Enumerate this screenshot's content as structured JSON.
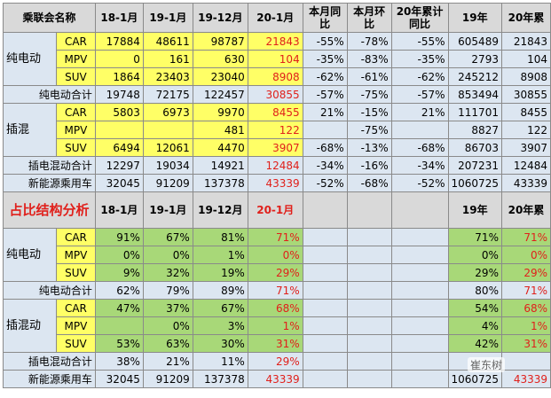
{
  "table": {
    "sections": [
      {
        "header": [
          "乘联会名称",
          "18-1月",
          "19-1月",
          "19-12月",
          "20-1月",
          "本月同比",
          "本月环比",
          "20年累计同比",
          "19年",
          "20年累"
        ],
        "rows": [
          {
            "group": "纯电动",
            "items": [
              {
                "label": "CAR",
                "cells": [
                  "17884",
                  "48611",
                  "98787",
                  "21843",
                  "-55%",
                  "-78%",
                  "-55%",
                  "605489",
                  "21843"
                ]
              },
              {
                "label": "MPV",
                "cells": [
                  "0",
                  "161",
                  "630",
                  "104",
                  "-35%",
                  "-83%",
                  "-35%",
                  "2793",
                  "104"
                ]
              },
              {
                "label": "SUV",
                "cells": [
                  "1864",
                  "23403",
                  "23040",
                  "8908",
                  "-62%",
                  "-61%",
                  "-62%",
                  "245212",
                  "8908"
                ]
              }
            ]
          },
          {
            "label": "纯电动合计",
            "cells": [
              "19748",
              "72175",
              "122457",
              "30855",
              "-57%",
              "-75%",
              "-57%",
              "853494",
              "30855"
            ]
          },
          {
            "group": "插混",
            "items": [
              {
                "label": "CAR",
                "cells": [
                  "5803",
                  "6973",
                  "9970",
                  "8455",
                  "21%",
                  "-15%",
                  "21%",
                  "111701",
                  "8455"
                ]
              },
              {
                "label": "MPV",
                "cells": [
                  null,
                  null,
                  "481",
                  "122",
                  null,
                  "-75%",
                  null,
                  "8827",
                  "122"
                ]
              },
              {
                "label": "SUV",
                "cells": [
                  "6494",
                  "12061",
                  "4470",
                  "3907",
                  "-68%",
                  "-13%",
                  "-68%",
                  "86703",
                  "3907"
                ]
              }
            ]
          },
          {
            "label": "插电混动合计",
            "cells": [
              "12297",
              "19034",
              "14921",
              "12484",
              "-34%",
              "-16%",
              "-34%",
              "207231",
              "12484"
            ]
          },
          {
            "label": "新能源乘用车",
            "cells": [
              "32045",
              "91209",
              "137378",
              "43339",
              "-52%",
              "-68%",
              "-52%",
              "1060725",
              "43339"
            ]
          }
        ]
      },
      {
        "header": [
          "占比结构分析",
          "18-1月",
          "19-1月",
          "19-12月",
          "20-1月",
          null,
          null,
          null,
          "19年",
          "20年累"
        ],
        "rows": [
          {
            "group": "纯电动",
            "items": [
              {
                "label": "CAR",
                "cells": [
                  "91%",
                  "67%",
                  "81%",
                  "71%",
                  null,
                  null,
                  null,
                  "71%",
                  "71%"
                ]
              },
              {
                "label": "MPV",
                "cells": [
                  "0%",
                  "0%",
                  "1%",
                  "0%",
                  null,
                  null,
                  null,
                  "0%",
                  "0%"
                ]
              },
              {
                "label": "SUV",
                "cells": [
                  "9%",
                  "32%",
                  "19%",
                  "29%",
                  null,
                  null,
                  null,
                  "29%",
                  "29%"
                ]
              }
            ]
          },
          {
            "label": "纯电动合计",
            "cells": [
              "62%",
              "79%",
              "89%",
              "71%",
              null,
              null,
              null,
              "80%",
              "71%"
            ]
          },
          {
            "group": "插混动",
            "items": [
              {
                "label": "CAR",
                "cells": [
                  "47%",
                  "37%",
                  "67%",
                  "68%",
                  null,
                  null,
                  null,
                  "54%",
                  "68%"
                ]
              },
              {
                "label": "MPV",
                "cells": [
                  null,
                  "0%",
                  "3%",
                  "1%",
                  null,
                  null,
                  null,
                  "4%",
                  "1%"
                ]
              },
              {
                "label": "SUV",
                "cells": [
                  "53%",
                  "63%",
                  "30%",
                  "31%",
                  null,
                  null,
                  null,
                  "42%",
                  "31%"
                ]
              }
            ]
          },
          {
            "label": "插电混动合计",
            "cells": [
              "38%",
              "21%",
              "11%",
              "29%",
              null,
              null,
              null,
              null,
              null
            ]
          },
          {
            "label": "新能源乘用车",
            "cells": [
              "32045",
              "91209",
              "137378",
              "43339",
              null,
              null,
              null,
              "1060725",
              "43339"
            ]
          }
        ]
      }
    ],
    "watermark": "崔东树"
  }
}
